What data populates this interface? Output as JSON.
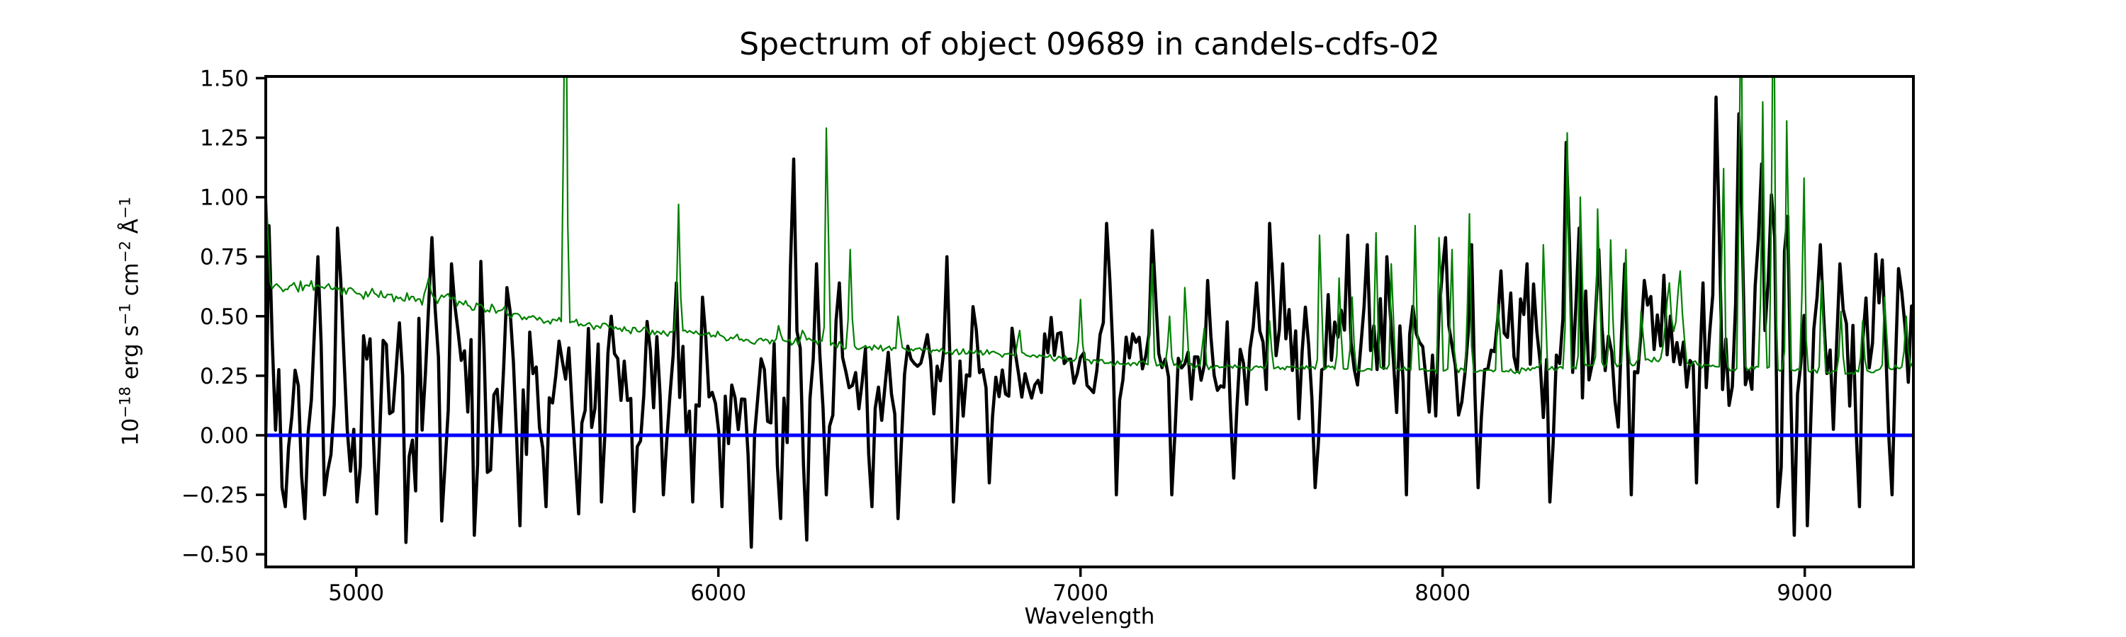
{
  "figure": {
    "title": "Spectrum of object 09689 in candels-cdfs-02",
    "xlabel": "Wavelength",
    "ylabel_plain": "10^-18 erg s^-1 cm^-2 A^-1",
    "ylabel_parts": [
      {
        "t": "10"
      },
      {
        "t": "−18",
        "sup": true
      },
      {
        "t": " erg s"
      },
      {
        "t": "−1",
        "sup": true
      },
      {
        "t": " cm"
      },
      {
        "t": "−2",
        "sup": true
      },
      {
        "t": " Å"
      },
      {
        "t": "−1",
        "sup": true
      }
    ],
    "background": "#ffffff",
    "axes_edge_color": "#000000"
  },
  "chart_data": {
    "type": "line",
    "title": "Spectrum of object 09689 in candels-cdfs-02",
    "xlabel": "Wavelength",
    "ylabel": "10^-18 erg s^-1 cm^-2 A^-1 (flux density)",
    "grid": false,
    "legend": "none",
    "xlim": [
      4750,
      9300
    ],
    "ylim": [
      -0.553,
      1.507
    ],
    "xticks": {
      "values": [
        5000,
        6000,
        7000,
        8000,
        9000
      ],
      "labels": [
        "5000",
        "6000",
        "7000",
        "8000",
        "9000"
      ]
    },
    "yticks": {
      "values": [
        -0.5,
        -0.25,
        0.0,
        0.25,
        0.5,
        0.75,
        1.0,
        1.25,
        1.5
      ],
      "labels": [
        "−0.50",
        "−0.25",
        "0.00",
        "0.25",
        "0.50",
        "0.75",
        "1.00",
        "1.25",
        "1.50"
      ]
    },
    "series": [
      {
        "name": "flux",
        "role": "object spectrum (noisy)",
        "color": "#000000",
        "linewidth": 4.5,
        "step": 9,
        "seed": 7,
        "noise_scale": 1.7,
        "mean_trend": [
          [
            4750,
            0.15
          ],
          [
            5000,
            0.16
          ],
          [
            5200,
            0.17
          ],
          [
            5500,
            0.18
          ],
          [
            5800,
            0.2
          ],
          [
            6100,
            0.17
          ],
          [
            6400,
            0.2
          ],
          [
            6600,
            0.24
          ],
          [
            6800,
            0.28
          ],
          [
            7000,
            0.3
          ],
          [
            7200,
            0.31
          ],
          [
            7400,
            0.31
          ],
          [
            7600,
            0.31
          ],
          [
            7800,
            0.32
          ],
          [
            8000,
            0.32
          ],
          [
            8200,
            0.33
          ],
          [
            8400,
            0.34
          ],
          [
            8600,
            0.35
          ],
          [
            8800,
            0.36
          ],
          [
            9000,
            0.35
          ],
          [
            9300,
            0.34
          ]
        ],
        "noise_amp": [
          [
            4750,
            0.26
          ],
          [
            5000,
            0.25
          ],
          [
            5300,
            0.24
          ],
          [
            5600,
            0.22
          ],
          [
            5900,
            0.21
          ],
          [
            6200,
            0.22
          ],
          [
            6500,
            0.16
          ],
          [
            6800,
            0.12
          ],
          [
            7000,
            0.13
          ],
          [
            7200,
            0.14
          ],
          [
            7500,
            0.16
          ],
          [
            7800,
            0.18
          ],
          [
            8000,
            0.19
          ],
          [
            8200,
            0.2
          ],
          [
            8400,
            0.22
          ],
          [
            8600,
            0.24
          ],
          [
            8800,
            0.26
          ],
          [
            9000,
            0.3
          ],
          [
            9150,
            0.28
          ],
          [
            9300,
            0.24
          ]
        ],
        "peaks": [
          [
            4760,
            0.88
          ],
          [
            4892,
            0.75
          ],
          [
            4952,
            0.87
          ],
          [
            5210,
            0.83
          ],
          [
            5265,
            0.72
          ],
          [
            5345,
            0.73
          ],
          [
            5420,
            0.62
          ],
          [
            5700,
            0.5
          ],
          [
            5880,
            0.64
          ],
          [
            5960,
            0.58
          ],
          [
            6205,
            1.16
          ],
          [
            6270,
            0.72
          ],
          [
            6330,
            0.64
          ],
          [
            6634,
            0.75
          ],
          [
            6705,
            0.54
          ],
          [
            7075,
            0.89
          ],
          [
            7200,
            0.86
          ],
          [
            7353,
            0.65
          ],
          [
            7484,
            0.64
          ],
          [
            7525,
            0.89
          ],
          [
            7560,
            0.72
          ],
          [
            7740,
            0.84
          ],
          [
            7790,
            0.8
          ],
          [
            7850,
            0.75
          ],
          [
            7910,
            0.7
          ],
          [
            8005,
            0.83
          ],
          [
            8080,
            0.8
          ],
          [
            8160,
            0.69
          ],
          [
            8230,
            0.72
          ],
          [
            8345,
            1.23
          ],
          [
            8373,
            0.87
          ],
          [
            8430,
            0.78
          ],
          [
            8500,
            0.72
          ],
          [
            8560,
            0.65
          ],
          [
            8758,
            1.42
          ],
          [
            8820,
            1.35
          ],
          [
            8877,
            1.14
          ],
          [
            8911,
            1.01
          ],
          [
            8950,
            0.92
          ],
          [
            9040,
            0.8
          ],
          [
            9100,
            0.72
          ],
          [
            9198,
            0.76
          ],
          [
            9260,
            0.7
          ]
        ],
        "dips": [
          [
            4800,
            -0.3
          ],
          [
            4860,
            -0.35
          ],
          [
            4915,
            -0.25
          ],
          [
            5000,
            -0.28
          ],
          [
            5060,
            -0.33
          ],
          [
            5140,
            -0.45
          ],
          [
            5240,
            -0.36
          ],
          [
            5330,
            -0.42
          ],
          [
            5450,
            -0.38
          ],
          [
            5520,
            -0.3
          ],
          [
            5610,
            -0.33
          ],
          [
            5680,
            -0.28
          ],
          [
            5770,
            -0.32
          ],
          [
            5850,
            -0.25
          ],
          [
            5930,
            -0.28
          ],
          [
            6010,
            -0.3
          ],
          [
            6090,
            -0.47
          ],
          [
            6170,
            -0.35
          ],
          [
            6240,
            -0.44
          ],
          [
            6300,
            -0.25
          ],
          [
            6420,
            -0.3
          ],
          [
            6497,
            -0.35
          ],
          [
            6650,
            -0.28
          ],
          [
            6750,
            -0.2
          ],
          [
            7100,
            -0.25
          ],
          [
            7255,
            -0.25
          ],
          [
            7420,
            -0.18
          ],
          [
            7650,
            -0.22
          ],
          [
            7900,
            -0.25
          ],
          [
            8100,
            -0.22
          ],
          [
            8300,
            -0.28
          ],
          [
            8520,
            -0.25
          ],
          [
            8700,
            -0.2
          ],
          [
            8930,
            -0.3
          ],
          [
            8970,
            -0.42
          ],
          [
            9010,
            -0.38
          ],
          [
            9150,
            -0.3
          ],
          [
            9240,
            -0.25
          ]
        ]
      },
      {
        "name": "error",
        "role": "noise / sky error spectrum",
        "color": "#008000",
        "linewidth": 2.2,
        "step": 6,
        "seed": 11,
        "jitter": 0.05,
        "baseline": [
          [
            4750,
            1.05
          ],
          [
            4762,
            0.63
          ],
          [
            4800,
            0.62
          ],
          [
            4900,
            0.63
          ],
          [
            5000,
            0.6
          ],
          [
            5100,
            0.58
          ],
          [
            5200,
            0.57
          ],
          [
            5250,
            0.59
          ],
          [
            5300,
            0.55
          ],
          [
            5400,
            0.52
          ],
          [
            5500,
            0.49
          ],
          [
            5600,
            0.47
          ],
          [
            5700,
            0.455
          ],
          [
            5800,
            0.44
          ],
          [
            5900,
            0.435
          ],
          [
            6000,
            0.42
          ],
          [
            6100,
            0.4
          ],
          [
            6200,
            0.39
          ],
          [
            6250,
            0.4
          ],
          [
            6320,
            0.385
          ],
          [
            6400,
            0.37
          ],
          [
            6500,
            0.365
          ],
          [
            6600,
            0.355
          ],
          [
            6700,
            0.35
          ],
          [
            6800,
            0.34
          ],
          [
            6900,
            0.33
          ],
          [
            7000,
            0.315
          ],
          [
            7100,
            0.305
          ],
          [
            7200,
            0.3
          ],
          [
            7300,
            0.29
          ],
          [
            7400,
            0.285
          ],
          [
            7500,
            0.28
          ],
          [
            7600,
            0.285
          ],
          [
            7700,
            0.28
          ],
          [
            7800,
            0.28
          ],
          [
            7900,
            0.275
          ],
          [
            8000,
            0.275
          ],
          [
            8100,
            0.27
          ],
          [
            8200,
            0.27
          ],
          [
            8300,
            0.28
          ],
          [
            8400,
            0.29
          ],
          [
            8500,
            0.3
          ],
          [
            8600,
            0.32
          ],
          [
            8700,
            0.3
          ],
          [
            8800,
            0.28
          ],
          [
            8900,
            0.28
          ],
          [
            9000,
            0.27
          ],
          [
            9100,
            0.26
          ],
          [
            9200,
            0.27
          ],
          [
            9300,
            0.3
          ]
        ],
        "peaks": [
          [
            5200,
            0.66,
            14
          ],
          [
            5577,
            2.2,
            10
          ],
          [
            5890,
            0.97,
            9
          ],
          [
            6168,
            0.46,
            10
          ],
          [
            6235,
            0.44,
            10
          ],
          [
            6300,
            1.29,
            9
          ],
          [
            6364,
            0.78,
            9
          ],
          [
            6498,
            0.5,
            9
          ],
          [
            6830,
            0.44,
            9
          ],
          [
            7000,
            0.57,
            9
          ],
          [
            7196,
            0.72,
            9
          ],
          [
            7245,
            0.5,
            9
          ],
          [
            7290,
            0.62,
            9
          ],
          [
            7340,
            0.45,
            9
          ],
          [
            7523,
            0.48,
            9
          ],
          [
            7662,
            0.84,
            9
          ],
          [
            7715,
            0.66,
            9
          ],
          [
            7750,
            0.58,
            9
          ],
          [
            7816,
            0.85,
            9
          ],
          [
            7860,
            0.72,
            9
          ],
          [
            7924,
            0.88,
            9
          ],
          [
            7993,
            0.83,
            9
          ],
          [
            8025,
            0.78,
            9
          ],
          [
            8073,
            0.93,
            9
          ],
          [
            8155,
            0.55,
            9
          ],
          [
            8280,
            0.8,
            9
          ],
          [
            8345,
            1.27,
            9
          ],
          [
            8382,
            1.0,
            9
          ],
          [
            8430,
            0.95,
            9
          ],
          [
            8465,
            0.82,
            9
          ],
          [
            8505,
            0.78,
            9
          ],
          [
            8550,
            0.52,
            9
          ],
          [
            8624,
            0.64,
            20
          ],
          [
            8654,
            0.69,
            20
          ],
          [
            8774,
            1.12,
            9
          ],
          [
            8823,
            2.0,
            9
          ],
          [
            8884,
            1.4,
            9
          ],
          [
            8913,
            2.1,
            9
          ],
          [
            8952,
            1.32,
            9
          ],
          [
            8997,
            1.08,
            9
          ],
          [
            9048,
            0.65,
            9
          ],
          [
            9100,
            0.52,
            9
          ],
          [
            9160,
            0.48,
            9
          ],
          [
            9222,
            0.58,
            9
          ],
          [
            9280,
            0.5,
            9
          ]
        ]
      },
      {
        "name": "zero",
        "role": "zero flux reference line",
        "color": "#0000ff",
        "linewidth": 5,
        "y": 0.0
      }
    ]
  }
}
